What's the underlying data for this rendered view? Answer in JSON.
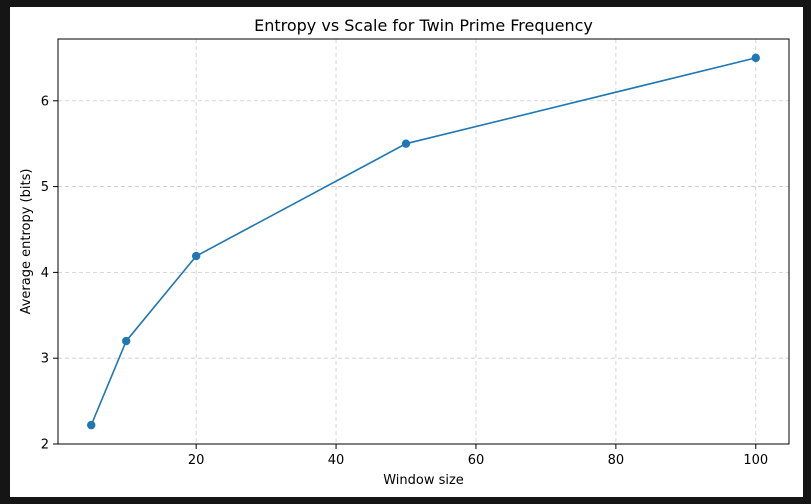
{
  "chart_data": {
    "type": "line",
    "title": "Entropy vs Scale for Twin Prime Frequency",
    "xlabel": "Window size",
    "ylabel": "Average entropy (bits)",
    "xlim": [
      0.25,
      104.75
    ],
    "ylim": [
      2.0,
      6.72
    ],
    "xticks": [
      20,
      40,
      60,
      80,
      100
    ],
    "yticks": [
      2,
      3,
      4,
      5,
      6
    ],
    "grid": true,
    "series": [
      {
        "color": "#1f77b4",
        "marker": "circle",
        "x": [
          5,
          10,
          20,
          50,
          100
        ],
        "y": [
          2.22,
          3.2,
          4.19,
          5.5,
          6.5
        ]
      }
    ]
  }
}
